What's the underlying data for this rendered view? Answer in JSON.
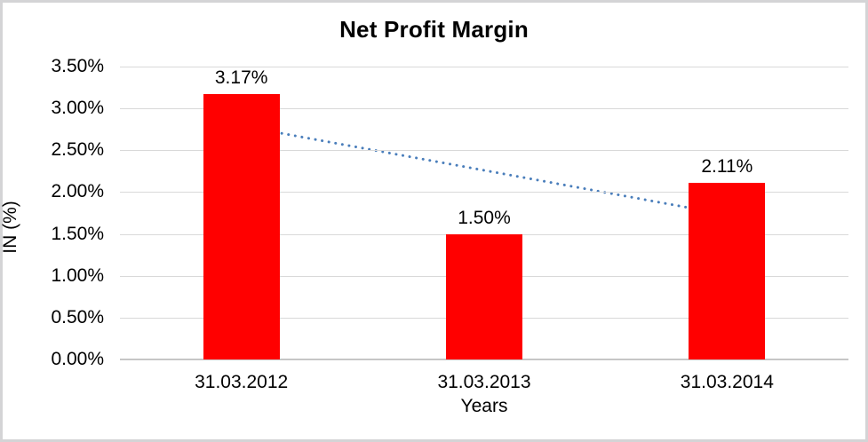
{
  "chart_data": {
    "type": "bar",
    "title": "Net Profit Margin",
    "xlabel": "Years",
    "ylabel": "IN (%)",
    "categories": [
      "31.03.2012",
      "31.03.2013",
      "31.03.2014"
    ],
    "values": [
      3.17,
      1.5,
      2.11
    ],
    "data_labels": [
      "3.17%",
      "1.50%",
      "2.11%"
    ],
    "yticks": [
      {
        "value": 3.5,
        "label": "3.50%"
      },
      {
        "value": 3.0,
        "label": "3.00%"
      },
      {
        "value": 2.5,
        "label": "2.50%"
      },
      {
        "value": 2.0,
        "label": "2.00%"
      },
      {
        "value": 1.5,
        "label": "1.50%"
      },
      {
        "value": 1.0,
        "label": "1.00%"
      },
      {
        "value": 0.5,
        "label": "0.50%"
      },
      {
        "value": 0.0,
        "label": "0.00%"
      }
    ],
    "ylim": [
      0,
      3.5
    ],
    "grid": true,
    "legend": "none",
    "bar_color": "#ff0000",
    "gridline_color": "#d9d9d9",
    "border_color": "#d4d4d6",
    "trendline": {
      "type": "linear",
      "style": "dotted",
      "color": "#4a7ebb",
      "start_value": 2.79,
      "end_value": 1.73
    }
  }
}
